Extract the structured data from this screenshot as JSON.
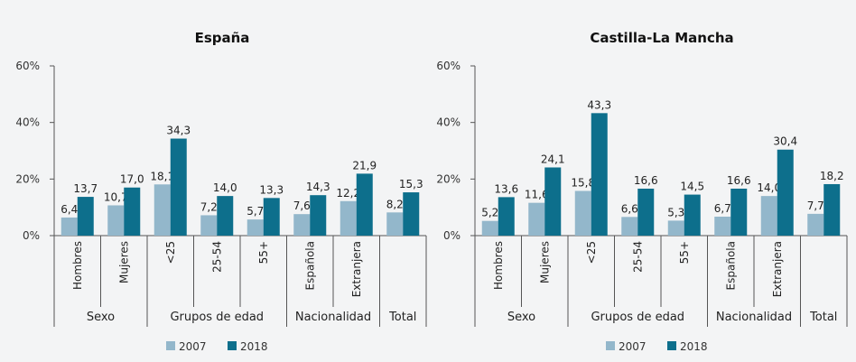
{
  "colors": {
    "background": "#f3f4f5",
    "series_2007": "#93b7cb",
    "series_2018": "#0d6f8c",
    "axis": "#555555"
  },
  "chart_data": [
    {
      "type": "bar",
      "title": "España",
      "categories": [
        "Hombres",
        "Mujeres",
        "<25",
        "25-54",
        "55+",
        "Española",
        "Extranjera",
        ""
      ],
      "groups": [
        {
          "label": "Sexo",
          "span": 2
        },
        {
          "label": "Grupos de edad",
          "span": 3
        },
        {
          "label": "Nacionalidad",
          "span": 2
        },
        {
          "label": "Total",
          "span": 1
        }
      ],
      "series": [
        {
          "name": "2007",
          "values": [
            6.4,
            10.7,
            18.1,
            7.2,
            5.7,
            7.6,
            12.2,
            8.2
          ],
          "labels": [
            "6,4",
            "10,7",
            "18,1",
            "7,2",
            "5,7",
            "7,6",
            "12,2",
            "8,2"
          ]
        },
        {
          "name": "2018",
          "values": [
            13.7,
            17.0,
            34.3,
            14.0,
            13.3,
            14.3,
            21.9,
            15.3
          ],
          "labels": [
            "13,7",
            "17,0",
            "34,3",
            "14,0",
            "13,3",
            "14,3",
            "21,9",
            "15,3"
          ]
        }
      ],
      "yticks": [
        "60%",
        "40%",
        "20%",
        "0%"
      ],
      "ytick_values": [
        60,
        40,
        20,
        0
      ],
      "ylim": [
        0,
        60
      ],
      "grid": false,
      "legend": "bottom"
    },
    {
      "type": "bar",
      "title": "Castilla-La Mancha",
      "categories": [
        "Hombres",
        "Mujeres",
        "<25",
        "25-54",
        "55+",
        "Española",
        "Extranjera",
        ""
      ],
      "groups": [
        {
          "label": "Sexo",
          "span": 2
        },
        {
          "label": "Grupos de edad",
          "span": 3
        },
        {
          "label": "Nacionalidad",
          "span": 2
        },
        {
          "label": "Total",
          "span": 1
        }
      ],
      "series": [
        {
          "name": "2007",
          "values": [
            5.2,
            11.6,
            15.8,
            6.6,
            5.3,
            6.7,
            14.0,
            7.7
          ],
          "labels": [
            "5,2",
            "11,6",
            "15,8",
            "6,6",
            "5,3",
            "6,7",
            "14,0",
            "7,7"
          ]
        },
        {
          "name": "2018",
          "values": [
            13.6,
            24.1,
            43.3,
            16.6,
            14.5,
            16.6,
            30.4,
            18.2
          ],
          "labels": [
            "13,6",
            "24,1",
            "43,3",
            "16,6",
            "14,5",
            "16,6",
            "30,4",
            "18,2"
          ]
        }
      ],
      "yticks": [
        "60%",
        "40%",
        "20%",
        "0%"
      ],
      "ytick_values": [
        60,
        40,
        20,
        0
      ],
      "ylim": [
        0,
        60
      ],
      "grid": false,
      "legend": "bottom"
    }
  ]
}
